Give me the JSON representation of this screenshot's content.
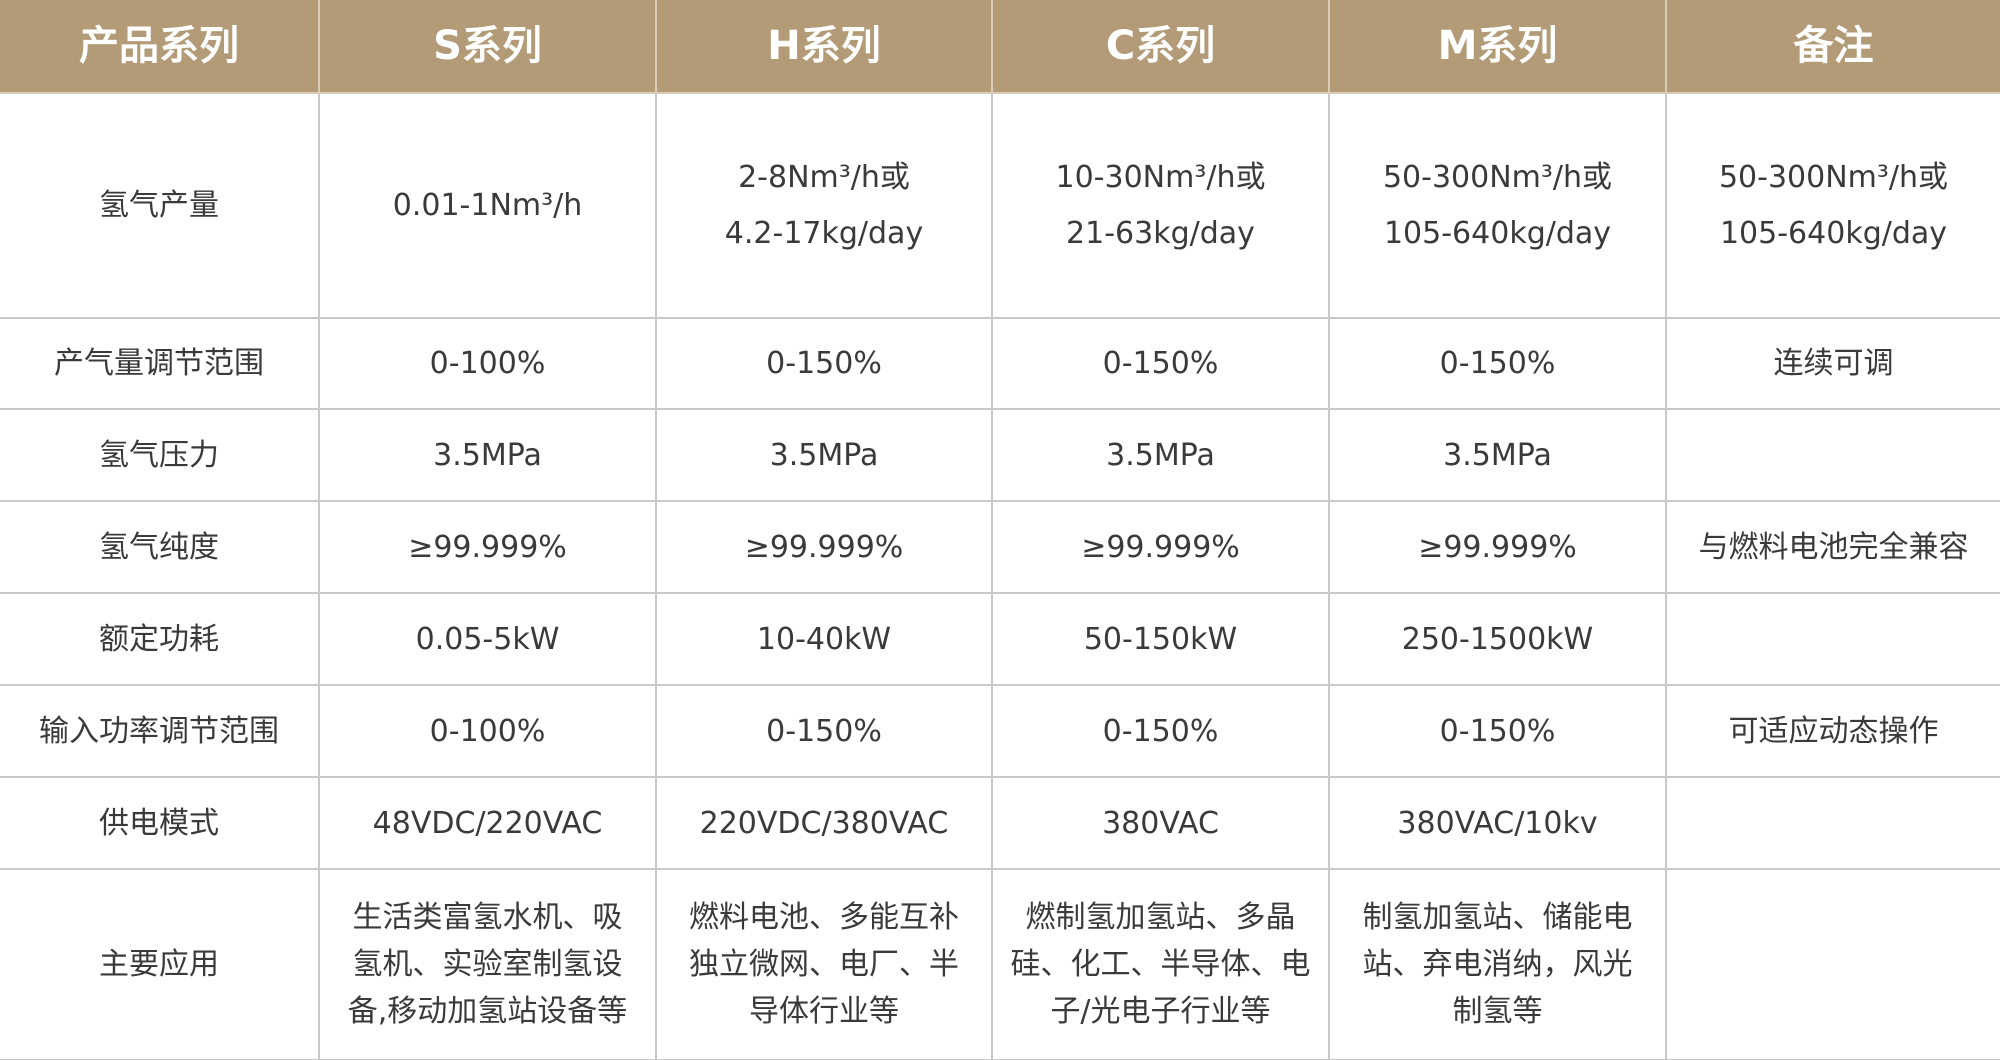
{
  "table": {
    "header": [
      "产品系列",
      "S系列",
      "H系列",
      "C系列",
      "M系列",
      "备注"
    ],
    "rows": [
      [
        "氢气产量",
        "0.01-1Nm³/h",
        [
          "2-8Nm³/h或",
          "4.2-17kg/day"
        ],
        [
          "10-30Nm³/h或",
          "21-63kg/day"
        ],
        [
          "50-300Nm³/h或",
          "105-640kg/day"
        ],
        [
          "50-300Nm³/h或",
          "105-640kg/day"
        ]
      ],
      [
        "产气量调节范围",
        "0-100%",
        "0-150%",
        "0-150%",
        "0-150%",
        "连续可调"
      ],
      [
        "氢气压力",
        "3.5MPa",
        "3.5MPa",
        "3.5MPa",
        "3.5MPa",
        null
      ],
      [
        "氢气纯度",
        "≥99.999%",
        "≥99.999%",
        "≥99.999%",
        "≥99.999%",
        "与燃料电池完全兼容"
      ],
      [
        "额定功耗",
        "0.05-5kW",
        "10-40kW",
        "50-150kW",
        "250-1500kW",
        null
      ],
      [
        "输入功率调节范围",
        "0-100%",
        "0-150%",
        "0-150%",
        "0-150%",
        "可适应动态操作"
      ],
      [
        "供电模式",
        "48VDC/220VAC",
        "220VDC/380VAC",
        "380VAC",
        "380VAC/10kv",
        null
      ],
      [
        "主要应用",
        [
          "生活类富氢水机、吸",
          "氢机、实验室制氢设",
          "备,移动加氢站设备等"
        ],
        [
          "燃料电池、多能互补",
          "独立微网、电厂、半",
          "导体行业等"
        ],
        [
          "燃制氢加氢站、多晶",
          "硅、化工、半导体、电",
          "子/光电子行业等"
        ],
        [
          "制氢加氢站、储能电",
          "站、弃电消纳，风光",
          "制氢等"
        ],
        null
      ]
    ]
  }
}
